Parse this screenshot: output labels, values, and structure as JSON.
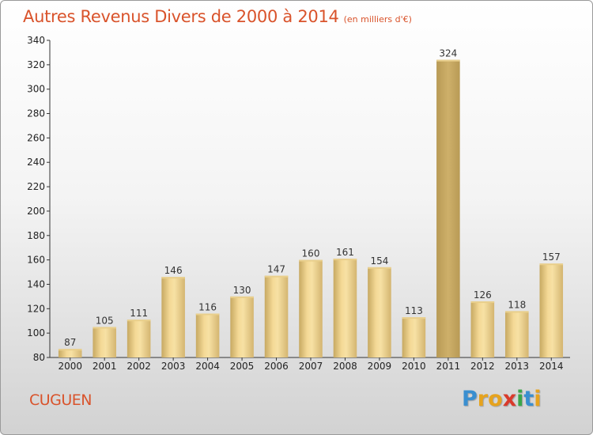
{
  "header": {
    "title": "Autres Revenus Divers de 2000 à 2014",
    "subtitle": "(en milliers d'€)"
  },
  "footer": {
    "commune": "CUGUEN",
    "logo": {
      "letters": [
        "P",
        "r",
        "o",
        "x",
        "i",
        "t",
        "i"
      ],
      "colors": [
        "#3a8fd0",
        "#e6a31e",
        "#e6a31e",
        "#d93a2b",
        "#3aa64a",
        "#3a8fd0",
        "#e6a31e"
      ]
    }
  },
  "colors": {
    "bar_light": "#f7e0a0",
    "bar_dark": "#c9ab64",
    "bar_highlight": "#c9a961"
  },
  "chart_data": {
    "type": "bar",
    "title": "Autres Revenus Divers de 2000 à 2014",
    "subtitle": "(en milliers d'€)",
    "categories": [
      "2000",
      "2001",
      "2002",
      "2003",
      "2004",
      "2005",
      "2006",
      "2007",
      "2008",
      "2009",
      "2010",
      "2011",
      "2012",
      "2013",
      "2014"
    ],
    "values": [
      87,
      105,
      111,
      146,
      116,
      130,
      147,
      160,
      161,
      154,
      113,
      324,
      126,
      118,
      157
    ],
    "ylim": [
      80,
      340
    ],
    "yticks": [
      80,
      100,
      120,
      140,
      160,
      180,
      200,
      220,
      240,
      260,
      280,
      300,
      320,
      340
    ],
    "grid": false,
    "data_labels": true
  }
}
